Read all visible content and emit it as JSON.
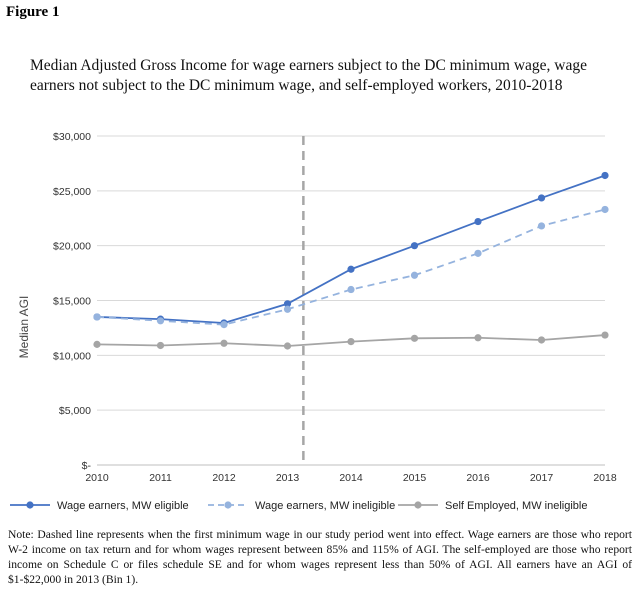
{
  "figure_label": "Figure 1",
  "note": "Note: Dashed line represents when the first minimum wage in our study period went into effect. Wage earners are those who report W-2 income on tax return and for whom wages represent between 85% and 115% of AGI. The self-employed are those who report income on Schedule C or files schedule SE and for whom wages represent less than 50% of AGI. All earners have an AGI of $1-$22,000 in 2013 (Bin 1).",
  "chart_data": {
    "type": "line",
    "title": "Median Adjusted Gross Income for wage earners subject to the DC minimum wage, wage earners not subject to the DC minimum wage, and self-employed workers, 2010-2018",
    "xlabel": "",
    "ylabel": "Median AGI",
    "x": [
      2010,
      2011,
      2012,
      2013,
      2014,
      2015,
      2016,
      2017,
      2018
    ],
    "ylim": [
      0,
      30000
    ],
    "yticks": [
      {
        "value": 0,
        "label": "$-"
      },
      {
        "value": 5000,
        "label": "$5,000"
      },
      {
        "value": 10000,
        "label": "$10,000"
      },
      {
        "value": 15000,
        "label": "$15,000"
      },
      {
        "value": 20000,
        "label": "$20,000"
      },
      {
        "value": 25000,
        "label": "$25,000"
      },
      {
        "value": 30000,
        "label": "$30,000"
      }
    ],
    "grid": true,
    "vertical_marker_x": 2013.25,
    "legend_position": "bottom",
    "series": [
      {
        "name": "Wage earners, MW eligible",
        "color": "#4472C4",
        "dashed": false,
        "values": [
          13500,
          13300,
          12950,
          14700,
          17850,
          20000,
          22200,
          24350,
          26400
        ]
      },
      {
        "name": "Wage earners, MW ineligible",
        "color": "#95B3DE",
        "dashed": true,
        "values": [
          13500,
          13150,
          12800,
          14200,
          16000,
          17300,
          19300,
          21800,
          23300
        ]
      },
      {
        "name": "Self Employed, MW ineligible",
        "color": "#A5A5A5",
        "dashed": false,
        "values": [
          11000,
          10900,
          11100,
          10850,
          11250,
          11550,
          11600,
          11400,
          11850
        ]
      }
    ]
  }
}
